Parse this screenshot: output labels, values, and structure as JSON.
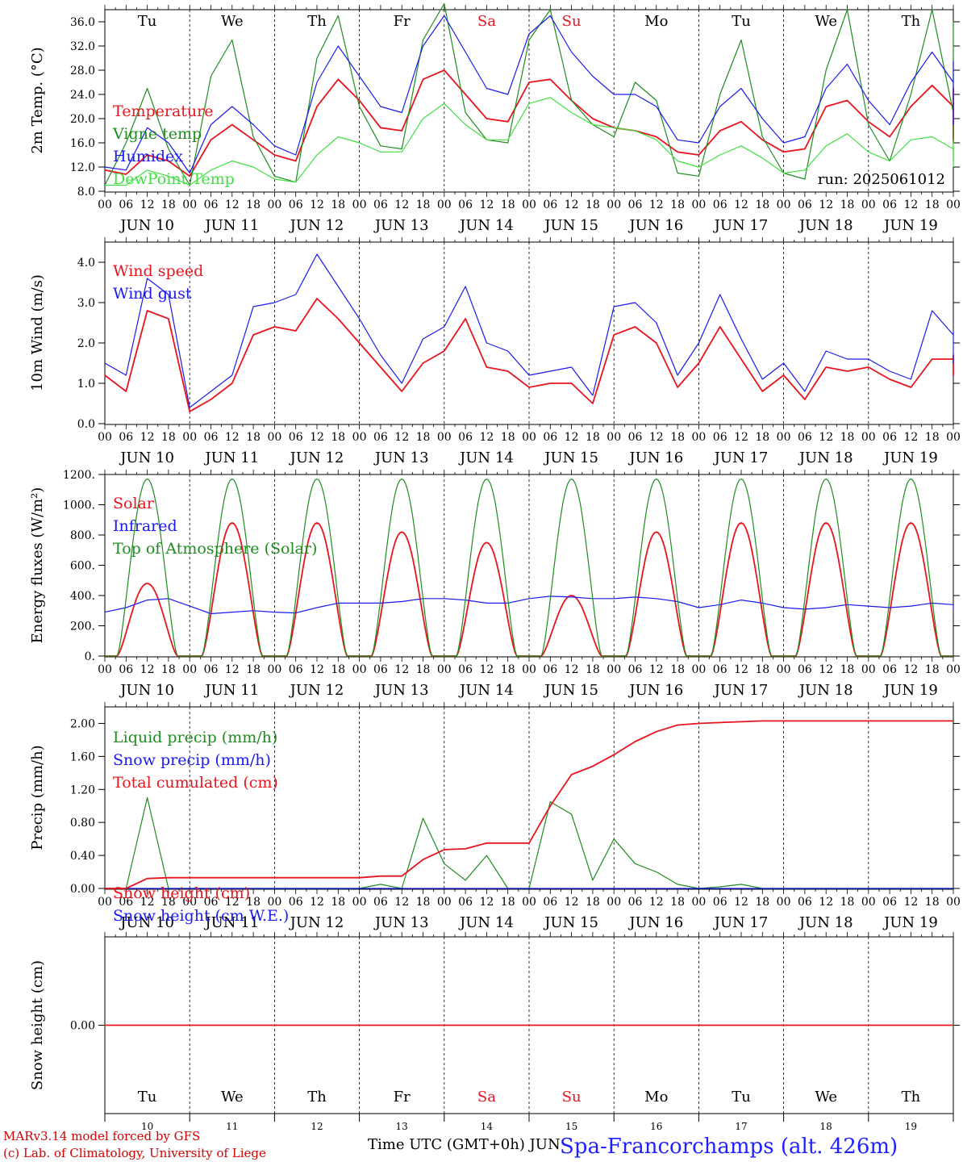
{
  "meta": {
    "footer_model": "MARv3.14 model forced by GFS",
    "footer_lab": "(c) Lab. of Climatology, University of Liege",
    "x_title": "Time UTC (GMT+0h) JUN",
    "station": "Spa-Francorchamps (alt. 426m)",
    "run_label": "run: 2025061012"
  },
  "colors": {
    "red": "#e8141e",
    "green": "#1e8c1e",
    "blue": "#1a1aee",
    "lightgreen": "#40e040",
    "black": "#000000"
  },
  "days": [
    {
      "abbr": "Tu",
      "date": "JUN 10",
      "num": "10",
      "weekend": false
    },
    {
      "abbr": "We",
      "date": "JUN 11",
      "num": "11",
      "weekend": false
    },
    {
      "abbr": "Th",
      "date": "JUN 12",
      "num": "12",
      "weekend": false
    },
    {
      "abbr": "Fr",
      "date": "JUN 13",
      "num": "13",
      "weekend": false
    },
    {
      "abbr": "Sa",
      "date": "JUN 14",
      "num": "14",
      "weekend": true
    },
    {
      "abbr": "Su",
      "date": "JUN 15",
      "num": "15",
      "weekend": true
    },
    {
      "abbr": "Mo",
      "date": "JUN 16",
      "num": "16",
      "weekend": false
    },
    {
      "abbr": "Tu",
      "date": "JUN 17",
      "num": "17",
      "weekend": false
    },
    {
      "abbr": "We",
      "date": "JUN 18",
      "num": "18",
      "weekend": false
    },
    {
      "abbr": "Th",
      "date": "JUN 19",
      "num": "19",
      "weekend": false
    }
  ],
  "hour_ticks": [
    "00",
    "06",
    "12",
    "18"
  ],
  "end_tick": "00",
  "chart_data": [
    {
      "type": "line",
      "id": "temperature",
      "ylabel": "2m Temp. (°C)",
      "ylim": [
        8,
        38
      ],
      "yticks": [
        "8.0",
        "12.0",
        "16.0",
        "20.0",
        "24.0",
        "28.0",
        "32.0",
        "36.0"
      ],
      "ytick_values": [
        8,
        12,
        16,
        20,
        24,
        28,
        32,
        36
      ],
      "show_day_abbr": true,
      "show_run": true,
      "legend": [
        {
          "label": "Temperature",
          "color": "red"
        },
        {
          "label": "Vigne temp",
          "color": "green"
        },
        {
          "label": "Humidex",
          "color": "blue"
        },
        {
          "label": "DewPoint Temp",
          "color": "lightgreen"
        }
      ],
      "series": [
        {
          "name": "Temperature",
          "color": "red",
          "step": 6,
          "values": [
            11.5,
            10.8,
            14.0,
            13.0,
            10.5,
            16.5,
            19.0,
            16.5,
            14.0,
            13.0,
            22.0,
            26.5,
            23.0,
            18.5,
            18.0,
            26.5,
            28.0,
            24.0,
            20.0,
            19.5,
            26.0,
            26.5,
            23.0,
            20.0,
            18.5,
            18.0,
            17.0,
            14.5,
            14.0,
            18.0,
            19.5,
            16.5,
            14.5,
            15.0,
            22.0,
            23.0,
            19.5,
            17.0,
            22.0,
            25.5,
            22.0,
            17.5,
            16.0,
            24.0,
            25.0,
            19.5
          ]
        },
        {
          "name": "Vigne temp",
          "color": "green",
          "step": 6,
          "values": [
            9.0,
            16.0,
            25.0,
            15.0,
            9.0,
            27.0,
            33.0,
            17.0,
            10.5,
            9.5,
            30.0,
            37.0,
            22.0,
            15.5,
            15.0,
            33.0,
            39.0,
            21.0,
            16.5,
            16.0,
            33.0,
            38.0,
            23.0,
            19.0,
            17.0,
            26.0,
            23.0,
            11.0,
            10.5,
            24.0,
            33.0,
            17.0,
            11.0,
            10.0,
            28.0,
            38.0,
            19.0,
            13.0,
            24.0,
            38.0,
            21.0,
            13.5,
            13.0,
            30.0,
            36.0,
            16.0
          ]
        },
        {
          "name": "Humidex",
          "color": "blue",
          "step": 6,
          "values": [
            12.0,
            11.5,
            18.5,
            16.0,
            11.0,
            19.0,
            22.0,
            19.0,
            15.5,
            14.0,
            26.0,
            32.0,
            27.0,
            22.0,
            21.0,
            32.0,
            37.0,
            31.0,
            25.0,
            24.0,
            34.0,
            37.0,
            31.0,
            27.0,
            24.0,
            24.0,
            22.0,
            16.5,
            16.0,
            22.0,
            25.0,
            20.0,
            16.0,
            17.0,
            25.0,
            29.0,
            23.0,
            19.0,
            26.0,
            31.0,
            26.0,
            20.0,
            19.0,
            27.0,
            29.5,
            22.0
          ]
        },
        {
          "name": "DewPoint Temp",
          "color": "lightgreen",
          "step": 6,
          "values": [
            9.0,
            9.0,
            11.5,
            10.5,
            9.0,
            11.5,
            13.0,
            12.0,
            10.0,
            9.5,
            14.0,
            17.0,
            16.0,
            14.5,
            14.5,
            20.0,
            22.5,
            19.0,
            16.5,
            16.5,
            22.5,
            23.5,
            21.0,
            19.0,
            18.5,
            18.0,
            16.5,
            13.0,
            12.0,
            14.0,
            15.5,
            13.5,
            11.0,
            11.5,
            15.5,
            17.5,
            14.5,
            13.0,
            16.5,
            17.0,
            15.0,
            13.0,
            12.5,
            16.0,
            16.5,
            12.0
          ]
        }
      ]
    },
    {
      "type": "line",
      "id": "wind",
      "ylabel": "10m Wind (m/s)",
      "ylim": [
        0,
        4.5
      ],
      "yticks": [
        "0.0",
        "1.0",
        "2.0",
        "3.0",
        "4.0"
      ],
      "ytick_values": [
        0,
        1,
        2,
        3,
        4
      ],
      "legend": [
        {
          "label": "Wind speed",
          "color": "red"
        },
        {
          "label": "Wind gust",
          "color": "blue"
        }
      ],
      "series": [
        {
          "name": "Wind speed",
          "color": "red",
          "step": 6,
          "values": [
            1.2,
            0.8,
            2.8,
            2.6,
            0.3,
            0.6,
            1.0,
            2.2,
            2.4,
            2.3,
            3.1,
            2.6,
            2.0,
            1.4,
            0.8,
            1.5,
            1.8,
            2.6,
            1.4,
            1.3,
            0.9,
            1.0,
            1.0,
            0.5,
            2.2,
            2.4,
            2.0,
            0.9,
            1.5,
            2.4,
            1.6,
            0.8,
            1.2,
            0.6,
            1.4,
            1.3,
            1.4,
            1.1,
            0.9,
            1.6,
            1.6,
            1.2,
            1.2,
            1.6,
            1.7,
            1.5
          ]
        },
        {
          "name": "Wind gust",
          "color": "blue",
          "step": 6,
          "values": [
            1.5,
            1.2,
            3.6,
            3.2,
            0.4,
            0.8,
            1.2,
            2.9,
            3.0,
            3.2,
            4.2,
            3.4,
            2.6,
            1.7,
            1.0,
            2.1,
            2.4,
            3.4,
            2.0,
            1.8,
            1.2,
            1.3,
            1.4,
            0.7,
            2.9,
            3.0,
            2.5,
            1.2,
            2.0,
            3.2,
            2.1,
            1.1,
            1.5,
            0.8,
            1.8,
            1.6,
            1.6,
            1.3,
            1.1,
            2.8,
            2.2,
            1.6,
            1.5,
            2.0,
            2.3,
            2.0
          ]
        }
      ]
    },
    {
      "type": "line",
      "id": "energy",
      "ylabel": "Energy fluxes (W/m²)",
      "ylim": [
        0,
        1200
      ],
      "yticks": [
        "0.",
        "200.",
        "400.",
        "600.",
        "800.",
        "1000.",
        "1200."
      ],
      "ytick_values": [
        0,
        200,
        400,
        600,
        800,
        1000,
        1200
      ],
      "legend": [
        {
          "label": "Solar",
          "color": "red"
        },
        {
          "label": "Infrared",
          "color": "blue"
        },
        {
          "label": "Top of Atmosphere (Solar)",
          "color": "green"
        }
      ],
      "series": [
        {
          "name": "Solar",
          "color": "red",
          "diurnal": true,
          "daily_peaks": [
            480,
            880,
            880,
            820,
            750,
            400,
            820,
            880,
            880,
            880
          ]
        },
        {
          "name": "Infrared",
          "color": "blue",
          "step": 6,
          "values": [
            290,
            320,
            370,
            380,
            330,
            280,
            290,
            300,
            290,
            285,
            320,
            350,
            350,
            350,
            360,
            380,
            380,
            370,
            350,
            350,
            380,
            395,
            390,
            380,
            380,
            390,
            380,
            360,
            320,
            340,
            370,
            350,
            320,
            310,
            320,
            340,
            330,
            320,
            330,
            350,
            340,
            320,
            310,
            320,
            330,
            320
          ]
        },
        {
          "name": "Top of Atmosphere (Solar)",
          "color": "green",
          "diurnal": true,
          "daily_peaks": [
            1170,
            1170,
            1170,
            1170,
            1170,
            1170,
            1170,
            1170,
            1170,
            1170
          ]
        }
      ]
    },
    {
      "type": "line",
      "id": "precip",
      "ylabel": "Precip (mm/h)",
      "ylim": [
        0,
        2.2
      ],
      "yticks": [
        "0.00",
        "0.40",
        "0.80",
        "1.20",
        "1.60",
        "2.00"
      ],
      "ytick_values": [
        0,
        0.4,
        0.8,
        1.2,
        1.6,
        2.0
      ],
      "legend": [
        {
          "label": "Liquid precip (mm/h)",
          "color": "green"
        },
        {
          "label": "Snow precip (mm/h)",
          "color": "blue"
        },
        {
          "label": "Total cumulated (cm)",
          "color": "red"
        }
      ],
      "series": [
        {
          "name": "Liquid precip (mm/h)",
          "color": "green",
          "step": 6,
          "values": [
            0,
            0,
            1.1,
            0,
            0,
            0,
            0,
            0,
            0,
            0,
            0,
            0,
            0,
            0.05,
            0,
            0.85,
            0.3,
            0.1,
            0.4,
            0,
            0,
            1.05,
            0.9,
            0.1,
            0.6,
            0.3,
            0.2,
            0.05,
            0,
            0.02,
            0.05,
            0,
            0,
            0,
            0,
            0,
            0,
            0,
            0,
            0,
            0,
            0,
            0,
            0,
            0,
            0
          ]
        },
        {
          "name": "Snow precip (mm/h)",
          "color": "blue",
          "step": 6,
          "values": [
            0,
            0,
            0,
            0,
            0,
            0,
            0,
            0,
            0,
            0,
            0,
            0,
            0,
            0,
            0,
            0,
            0,
            0,
            0,
            0,
            0,
            0,
            0,
            0,
            0,
            0,
            0,
            0,
            0,
            0,
            0,
            0,
            0,
            0,
            0,
            0,
            0,
            0,
            0,
            0,
            0,
            0,
            0,
            0,
            0,
            0
          ]
        },
        {
          "name": "Total cumulated (cm)",
          "color": "red",
          "step": 6,
          "values": [
            0,
            0,
            0.12,
            0.13,
            0.13,
            0.13,
            0.13,
            0.13,
            0.13,
            0.13,
            0.13,
            0.13,
            0.13,
            0.15,
            0.15,
            0.35,
            0.47,
            0.48,
            0.55,
            0.55,
            0.55,
            1.0,
            1.38,
            1.48,
            1.62,
            1.78,
            1.9,
            1.98,
            2.0,
            2.01,
            2.02,
            2.03,
            2.03,
            2.03,
            2.03,
            2.03,
            2.03,
            2.03,
            2.03,
            2.03,
            2.03,
            2.03,
            2.03,
            2.03,
            2.03,
            2.03
          ]
        }
      ]
    },
    {
      "type": "line",
      "id": "snow",
      "ylabel": "Snow height (cm)",
      "ylim": [
        -1,
        1
      ],
      "yticks": [
        "0.00"
      ],
      "ytick_values": [
        0
      ],
      "show_bottom_days": true,
      "legend": [
        {
          "label": "Snow height (cm)",
          "color": "red"
        },
        {
          "label": "Snow height (cm W.E.)",
          "color": "blue"
        }
      ],
      "series": [
        {
          "name": "Snow height (cm)",
          "color": "red",
          "step": 240,
          "values": [
            0,
            0
          ]
        }
      ]
    }
  ]
}
